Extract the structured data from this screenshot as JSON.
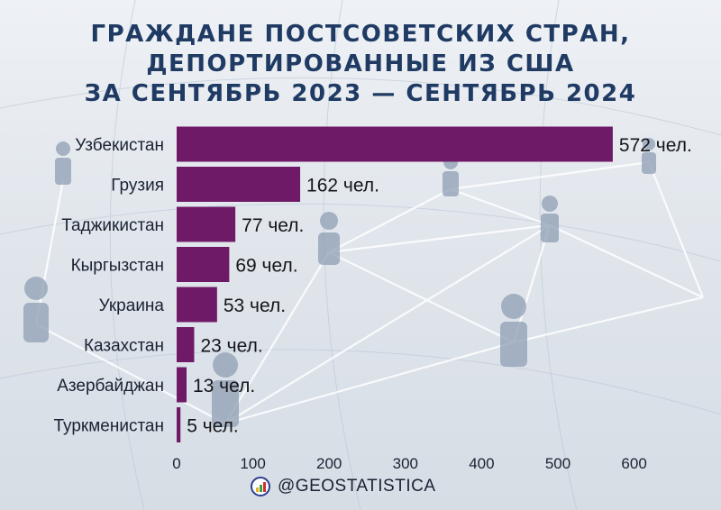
{
  "title_lines": [
    "ГРАЖДАНЕ ПОСТСОВЕТСКИХ СТРАН,",
    "ДЕПОРТИРОВАННЫЕ ИЗ США",
    "ЗА СЕНТЯБРЬ 2023 — СЕНТЯБРЬ 2024"
  ],
  "footer": {
    "handle": "@GEOSTATISTICA",
    "logo_icon": "bar-chart-logo-icon"
  },
  "colors": {
    "bar": "#6e1a67",
    "title": "#1f3a63"
  },
  "chart_data": {
    "type": "bar",
    "orientation": "horizontal",
    "title": "ГРАЖДАНЕ ПОСТСОВЕТСКИХ СТРАН, ДЕПОРТИРОВАННЫЕ ИЗ США ЗА СЕНТЯБРЬ 2023 — СЕНТЯБРЬ 2024",
    "categories": [
      "Узбекистан",
      "Грузия",
      "Таджикистан",
      "Кыргызстан",
      "Украина",
      "Казахстан",
      "Азербайджан",
      "Туркменистан"
    ],
    "values": [
      572,
      162,
      77,
      69,
      53,
      23,
      13,
      5
    ],
    "value_labels": [
      "572 чел.",
      "162 чел.",
      "77 чел.",
      "69 чел.",
      "53 чел.",
      "23 чел.",
      "13 чел.",
      "5 чел."
    ],
    "x_ticks": [
      0,
      100,
      200,
      300,
      400,
      500,
      600
    ],
    "xlim": [
      0,
      600
    ],
    "xlabel": "",
    "ylabel": "",
    "grid": false,
    "legend": "none"
  }
}
